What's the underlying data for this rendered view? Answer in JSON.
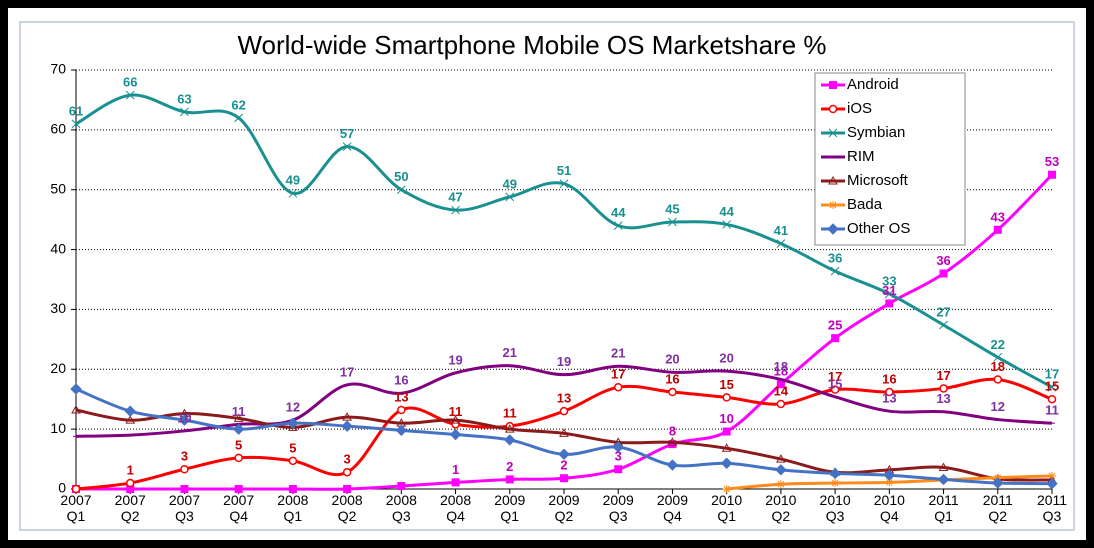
{
  "chart_data": {
    "type": "line",
    "title": "World-wide Smartphone Mobile OS Marketshare  %",
    "categories": [
      [
        "2007",
        "Q1"
      ],
      [
        "2007",
        "Q2"
      ],
      [
        "2007",
        "Q3"
      ],
      [
        "2007",
        "Q4"
      ],
      [
        "2008",
        "Q1"
      ],
      [
        "2008",
        "Q2"
      ],
      [
        "2008",
        "Q3"
      ],
      [
        "2008",
        "Q4"
      ],
      [
        "2009",
        "Q1"
      ],
      [
        "2009",
        "Q2"
      ],
      [
        "2009",
        "Q3"
      ],
      [
        "2009",
        "Q4"
      ],
      [
        "2010",
        "Q1"
      ],
      [
        "2010",
        "Q2"
      ],
      [
        "2010",
        "Q3"
      ],
      [
        "2010",
        "Q4"
      ],
      [
        "2011",
        "Q1"
      ],
      [
        "2011",
        "Q2"
      ],
      [
        "2011",
        "Q3"
      ]
    ],
    "ylim": [
      0,
      70
    ],
    "yticks": [
      0,
      10,
      20,
      30,
      40,
      50,
      60,
      70
    ],
    "grid": true,
    "legend": "top-right",
    "series": [
      {
        "name": "Android",
        "color": "#ff00ff",
        "label_color": "#c000c0",
        "marker": "square",
        "values": [
          0,
          0,
          0,
          0,
          0,
          0,
          0.5,
          1.1,
          1.6,
          1.8,
          3.3,
          7.5,
          9.6,
          17.5,
          25.2,
          31,
          36,
          43.3,
          52.5
        ],
        "value_labels": [
          null,
          null,
          null,
          null,
          null,
          null,
          null,
          "1",
          "2",
          "2",
          "3",
          "8",
          "10",
          "18",
          "25",
          "31",
          "36",
          "43",
          "53"
        ]
      },
      {
        "name": "iOS",
        "color": "#ff0000",
        "label_color": "#c00000",
        "marker": "circle",
        "values": [
          0,
          1,
          3.3,
          5.2,
          4.7,
          2.8,
          13.2,
          10.8,
          10.5,
          13,
          17,
          16.2,
          15.3,
          14.2,
          16.6,
          16.2,
          16.8,
          18.3,
          15
        ],
        "value_labels": [
          null,
          "1",
          "3",
          "5",
          "5",
          "3",
          "13",
          "11",
          "11",
          "13",
          "17",
          "16",
          "15",
          "14",
          "17",
          "16",
          "17",
          "18",
          "15"
        ]
      },
      {
        "name": "Symbian",
        "color": "#1a9090",
        "label_color": "#1a9090",
        "marker": "x",
        "values": [
          61,
          65.8,
          63,
          62,
          49.4,
          57.2,
          50,
          46.6,
          48.8,
          51,
          44,
          44.6,
          44.2,
          41,
          36.4,
          32.6,
          27.4,
          22,
          17
        ],
        "value_labels": [
          "61",
          "66",
          "63",
          "62",
          "49",
          "57",
          "50",
          "47",
          "49",
          "51",
          "44",
          "45",
          "44",
          "41",
          "36",
          "33",
          "27",
          "22",
          "17"
        ]
      },
      {
        "name": "RIM",
        "color": "#800080",
        "label_color": "#8030a0",
        "marker": "dash",
        "values": [
          8.8,
          9,
          9.7,
          10.8,
          11.5,
          17.4,
          16,
          19.4,
          20.6,
          19.1,
          20.5,
          19.5,
          19.7,
          18.3,
          15.4,
          13,
          12.9,
          11.6,
          11
        ],
        "value_labels": [
          null,
          null,
          "10",
          "11",
          "12",
          "17",
          "16",
          "19",
          "21",
          "19",
          "21",
          "20",
          "20",
          "18",
          "15",
          "13",
          "13",
          "12",
          "11"
        ]
      },
      {
        "name": "Microsoft",
        "color": "#8b1a1a",
        "marker": "triangle",
        "values": [
          13.2,
          11.5,
          12.6,
          11.8,
          10.3,
          12,
          11,
          11.5,
          10,
          9.3,
          7.8,
          7.8,
          6.8,
          5,
          2.8,
          3.2,
          3.6,
          1.7,
          1.5
        ]
      },
      {
        "name": "Bada",
        "color": "#ff8c1a",
        "marker": "star",
        "values": [
          null,
          null,
          null,
          null,
          null,
          null,
          null,
          null,
          null,
          null,
          null,
          null,
          0,
          0.8,
          1,
          1.1,
          1.5,
          1.9,
          2.2
        ]
      },
      {
        "name": "Other OS",
        "color": "#4472c4",
        "marker": "diamond",
        "values": [
          16.7,
          13,
          11.5,
          10,
          11,
          10.5,
          9.8,
          9.1,
          8.2,
          5.8,
          7,
          4,
          4.3,
          3.2,
          2.6,
          2.3,
          1.6,
          1,
          0.9
        ]
      }
    ]
  }
}
